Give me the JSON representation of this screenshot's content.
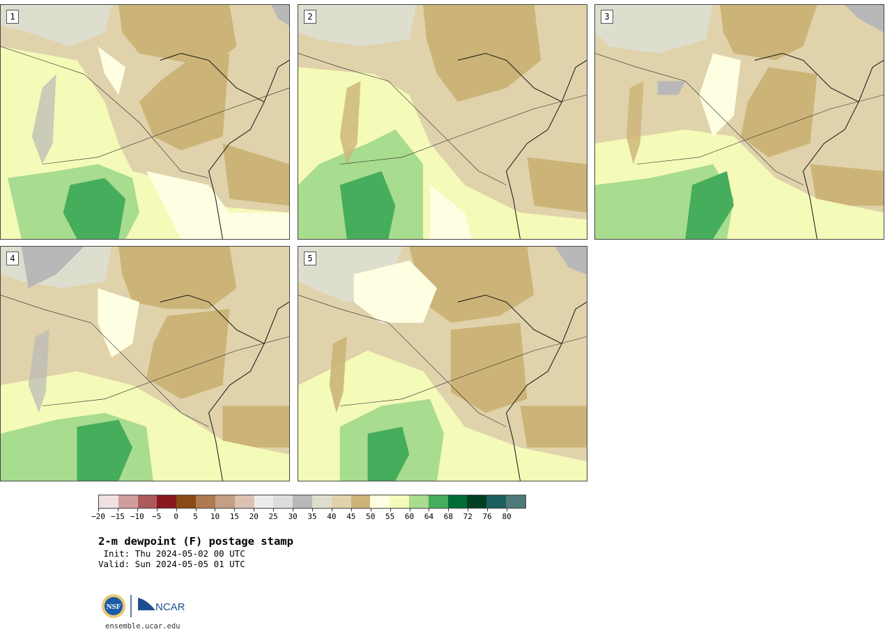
{
  "panels": [
    {
      "label": "1"
    },
    {
      "label": "2"
    },
    {
      "label": "3"
    },
    {
      "label": "4"
    },
    {
      "label": "5"
    }
  ],
  "colorbar": {
    "colors": [
      "#f0e1e1",
      "#d19e9e",
      "#ad5a5a",
      "#8a1820",
      "#8a4a16",
      "#ad7a52",
      "#c49e85",
      "#dcc2b2",
      "#ececec",
      "#dcdcdc",
      "#b8b8b8",
      "#dedecf",
      "#e0d2ab",
      "#ccb478",
      "#fefee2",
      "#f4fab8",
      "#a8dc8e",
      "#46ad5c",
      "#006d38",
      "#003f24",
      "#1e5e5e",
      "#4e7a7a"
    ],
    "tick_labels": [
      "−20",
      "−15",
      "−10",
      "−5",
      "0",
      "5",
      "10",
      "15",
      "20",
      "25",
      "30",
      "35",
      "40",
      "45",
      "50",
      "55",
      "60",
      "64",
      "68",
      "72",
      "76",
      "80"
    ]
  },
  "title": "2-m dewpoint (F) postage stamp",
  "init_text": " Init: Thu 2024-05-02 00 UTC",
  "valid_text": "Valid: Sun 2024-05-05 01 UTC",
  "logo": {
    "left_text": "NSF",
    "right_text": "NCAR",
    "nsf_color": "#1b5aa6",
    "ncar_color": "#1d4e8f"
  },
  "site": "ensemble.ucar.edu"
}
